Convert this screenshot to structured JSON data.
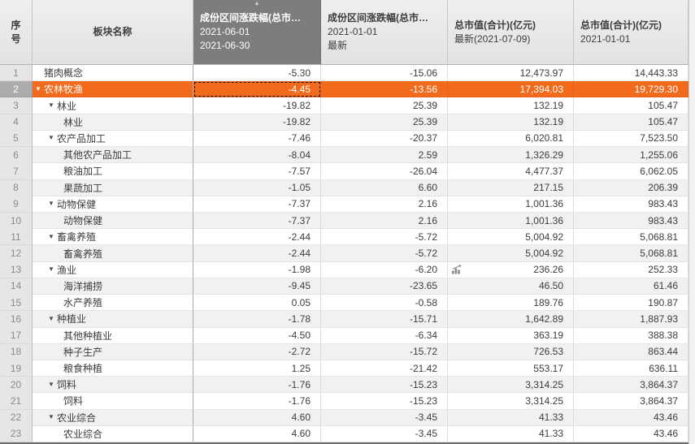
{
  "colors": {
    "accent_orange": "#F26B1D",
    "sorted_header_bg": "#7D7D7D",
    "header_bg": "#E9E9E9",
    "alt_row_bg": "#F1F1F1",
    "index_col_bg": "#E6E6E6",
    "selected_index_bg": "#ACACAC",
    "text": "#3C3C3C",
    "muted_text": "#8A8A8A"
  },
  "scrollbar": {
    "orientation": "vertical"
  },
  "table": {
    "columns": [
      {
        "key": "no",
        "label": "序号"
      },
      {
        "key": "name",
        "label": "板块名称"
      },
      {
        "key": "chg_jun",
        "title": "成份区间涨跌幅(总市…",
        "sub1": "2021-06-01",
        "sub2": "2021-06-30",
        "sorted": true,
        "sort_icon": "▲"
      },
      {
        "key": "chg_ytd",
        "title": "成份区间涨跌幅(总市…",
        "sub1": "2021-01-01",
        "sub2": "最新"
      },
      {
        "key": "mv_latest",
        "title": "总市值(合计)(亿元)",
        "sub1": "最新(2021-07-09)"
      },
      {
        "key": "mv_jan",
        "title": "总市值(合计)(亿元)",
        "sub1": "2021-01-01"
      }
    ],
    "rows": [
      {
        "no": 1,
        "name": "猪肉概念",
        "level": 0,
        "expandable": false,
        "chg_jun": "-5.30",
        "chg_ytd": "-15.06",
        "mv_latest": "12,473.97",
        "mv_jan": "14,443.33"
      },
      {
        "no": 2,
        "name": "农林牧渔",
        "level": 0,
        "expandable": true,
        "selected": true,
        "focused": true,
        "chg_jun": "-4.45",
        "chg_ytd": "-13.56",
        "mv_latest": "17,394.03",
        "mv_jan": "19,729.30"
      },
      {
        "no": 3,
        "name": "林业",
        "level": 1,
        "expandable": true,
        "chg_jun": "-19.82",
        "chg_ytd": "25.39",
        "mv_latest": "132.19",
        "mv_jan": "105.47"
      },
      {
        "no": 4,
        "name": "林业",
        "level": 2,
        "expandable": false,
        "chg_jun": "-19.82",
        "chg_ytd": "25.39",
        "mv_latest": "132.19",
        "mv_jan": "105.47"
      },
      {
        "no": 5,
        "name": "农产品加工",
        "level": 1,
        "expandable": true,
        "chg_jun": "-7.46",
        "chg_ytd": "-20.37",
        "mv_latest": "6,020.81",
        "mv_jan": "7,523.50"
      },
      {
        "no": 6,
        "name": "其他农产品加工",
        "level": 2,
        "expandable": false,
        "chg_jun": "-8.04",
        "chg_ytd": "2.59",
        "mv_latest": "1,326.29",
        "mv_jan": "1,255.06"
      },
      {
        "no": 7,
        "name": "粮油加工",
        "level": 2,
        "expandable": false,
        "chg_jun": "-7.57",
        "chg_ytd": "-26.04",
        "mv_latest": "4,477.37",
        "mv_jan": "6,062.05"
      },
      {
        "no": 8,
        "name": "果蔬加工",
        "level": 2,
        "expandable": false,
        "chg_jun": "-1.05",
        "chg_ytd": "6.60",
        "mv_latest": "217.15",
        "mv_jan": "206.39"
      },
      {
        "no": 9,
        "name": "动物保健",
        "level": 1,
        "expandable": true,
        "chg_jun": "-7.37",
        "chg_ytd": "2.16",
        "mv_latest": "1,001.36",
        "mv_jan": "983.43"
      },
      {
        "no": 10,
        "name": "动物保健",
        "level": 2,
        "expandable": false,
        "chg_jun": "-7.37",
        "chg_ytd": "2.16",
        "mv_latest": "1,001.36",
        "mv_jan": "983.43"
      },
      {
        "no": 11,
        "name": "畜禽养殖",
        "level": 1,
        "expandable": true,
        "chg_jun": "-2.44",
        "chg_ytd": "-5.72",
        "mv_latest": "5,004.92",
        "mv_jan": "5,068.81"
      },
      {
        "no": 12,
        "name": "畜禽养殖",
        "level": 2,
        "expandable": false,
        "chg_jun": "-2.44",
        "chg_ytd": "-5.72",
        "mv_latest": "5,004.92",
        "mv_jan": "5,068.81"
      },
      {
        "no": 13,
        "name": "渔业",
        "level": 1,
        "expandable": true,
        "chart_icon": true,
        "chg_jun": "-1.98",
        "chg_ytd": "-6.20",
        "mv_latest": "236.26",
        "mv_jan": "252.33"
      },
      {
        "no": 14,
        "name": "海洋捕捞",
        "level": 2,
        "expandable": false,
        "chg_jun": "-9.45",
        "chg_ytd": "-23.65",
        "mv_latest": "46.50",
        "mv_jan": "61.46"
      },
      {
        "no": 15,
        "name": "水产养殖",
        "level": 2,
        "expandable": false,
        "chg_jun": "0.05",
        "chg_ytd": "-0.58",
        "mv_latest": "189.76",
        "mv_jan": "190.87"
      },
      {
        "no": 16,
        "name": "种植业",
        "level": 1,
        "expandable": true,
        "chg_jun": "-1.78",
        "chg_ytd": "-15.71",
        "mv_latest": "1,642.89",
        "mv_jan": "1,887.93"
      },
      {
        "no": 17,
        "name": "其他种植业",
        "level": 2,
        "expandable": false,
        "chg_jun": "-4.50",
        "chg_ytd": "-6.34",
        "mv_latest": "363.19",
        "mv_jan": "388.38"
      },
      {
        "no": 18,
        "name": "种子生产",
        "level": 2,
        "expandable": false,
        "chg_jun": "-2.72",
        "chg_ytd": "-15.72",
        "mv_latest": "726.53",
        "mv_jan": "863.44"
      },
      {
        "no": 19,
        "name": "粮食种植",
        "level": 2,
        "expandable": false,
        "chg_jun": "1.25",
        "chg_ytd": "-21.42",
        "mv_latest": "553.17",
        "mv_jan": "636.11"
      },
      {
        "no": 20,
        "name": "饲料",
        "level": 1,
        "expandable": true,
        "chg_jun": "-1.76",
        "chg_ytd": "-15.23",
        "mv_latest": "3,314.25",
        "mv_jan": "3,864.37"
      },
      {
        "no": 21,
        "name": "饲料",
        "level": 2,
        "expandable": false,
        "chg_jun": "-1.76",
        "chg_ytd": "-15.23",
        "mv_latest": "3,314.25",
        "mv_jan": "3,864.37"
      },
      {
        "no": 22,
        "name": "农业综合",
        "level": 1,
        "expandable": true,
        "chg_jun": "4.60",
        "chg_ytd": "-3.45",
        "mv_latest": "41.33",
        "mv_jan": "43.46"
      },
      {
        "no": 23,
        "name": "农业综合",
        "level": 2,
        "expandable": false,
        "chg_jun": "4.60",
        "chg_ytd": "-3.45",
        "mv_latest": "41.33",
        "mv_jan": "43.46"
      }
    ]
  }
}
